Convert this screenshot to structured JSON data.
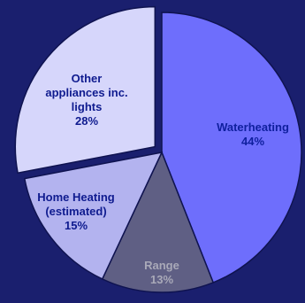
{
  "chart_data": {
    "type": "pie",
    "exploded_slice": "Other appliances inc. lights",
    "slices": [
      {
        "lines": [
          "Waterheating",
          "44%"
        ],
        "label": "Waterheating",
        "value": 44,
        "color": "#6e6efc",
        "text_color": "#0f1f9e"
      },
      {
        "lines": [
          "Range",
          "13%"
        ],
        "label": "Range",
        "value": 13,
        "color": "#5f5f84",
        "text_color": "#a9a9b8"
      },
      {
        "lines": [
          "Home Heating",
          "(estimated)",
          "15%"
        ],
        "label": "Home Heating (estimated)",
        "value": 15,
        "color": "#b3b3ef",
        "text_color": "#0f1b8f"
      },
      {
        "lines": [
          "Other",
          "appliances inc.",
          "lights",
          "28%"
        ],
        "label": "Other appliances inc. lights",
        "value": 28,
        "color": "#d6d6fb",
        "text_color": "#0f1b8f"
      }
    ]
  }
}
